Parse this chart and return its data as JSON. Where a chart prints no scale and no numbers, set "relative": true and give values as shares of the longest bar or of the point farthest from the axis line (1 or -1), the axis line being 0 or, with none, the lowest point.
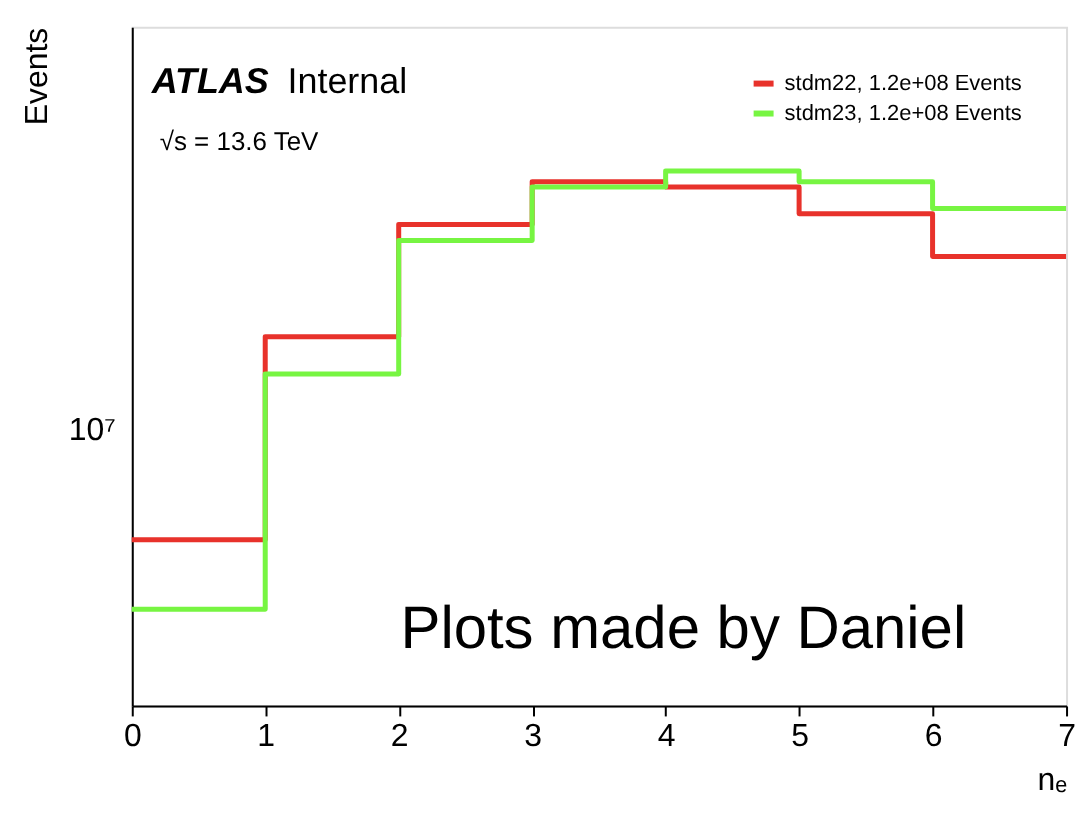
{
  "chart_data": {
    "type": "step",
    "ylabel": "Events",
    "xlabel": "nₑ",
    "relative": true,
    "x": [
      0,
      1,
      2,
      3,
      4,
      5,
      6,
      7
    ],
    "series": [
      {
        "name": "stdm22, 1.2e+08 Events",
        "color": "#e8322b",
        "values": [
          0.31,
          0.69,
          0.9,
          0.98,
          0.97,
          0.92,
          0.84,
          0.84
        ]
      },
      {
        "name": "stdm23, 1.2e+08 Events",
        "color": "#77f542",
        "values": [
          0.18,
          0.62,
          0.87,
          0.97,
          1.0,
          0.98,
          0.93,
          0.93
        ]
      }
    ],
    "xlim": [
      0,
      7
    ],
    "xticks": [
      0,
      1,
      2,
      3,
      4,
      5,
      6,
      7
    ],
    "grid": false,
    "legend": "top right",
    "annotations": [
      "ATLAS",
      "Internal",
      "√s = 13.6 TeV",
      "Plots made by Daniel",
      "10⁷"
    ]
  }
}
